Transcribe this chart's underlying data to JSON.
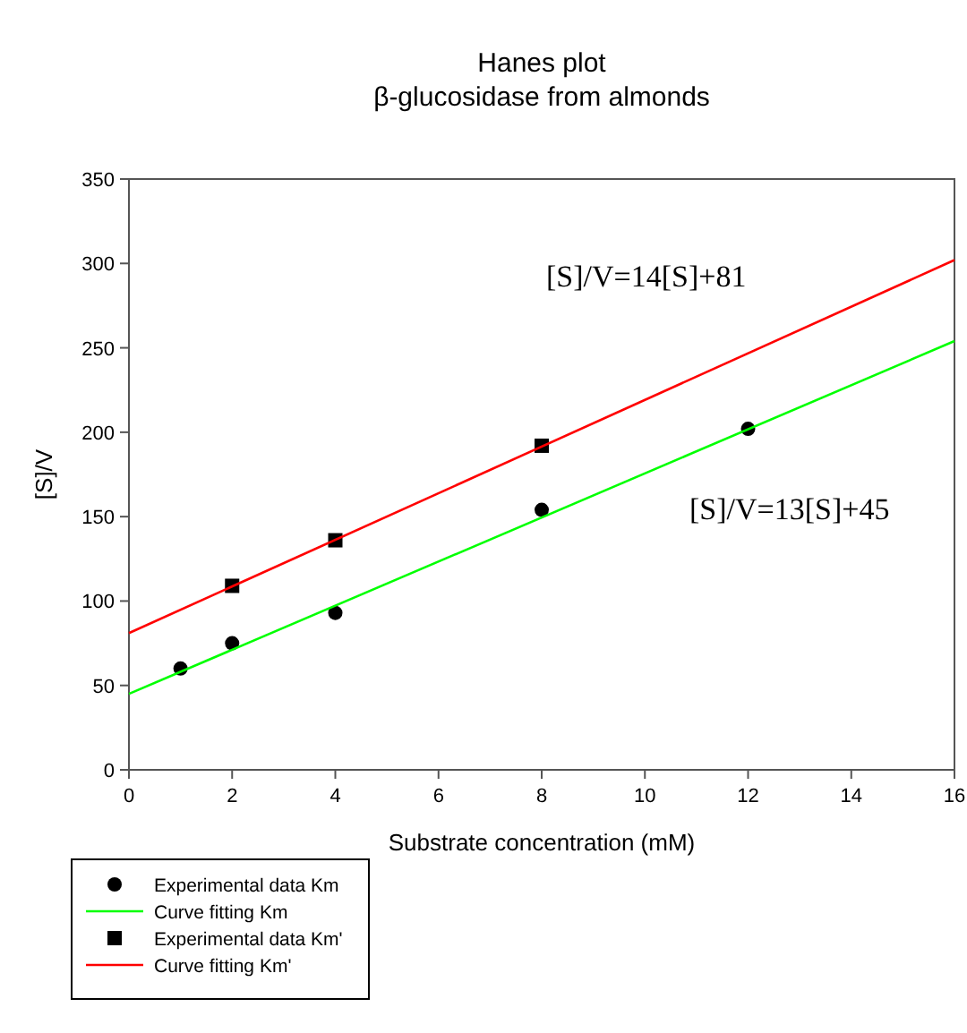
{
  "chart_data": {
    "type": "scatter",
    "title": "Hanes plot",
    "subtitle": "β-glucosidase from almonds",
    "xlabel": "Substrate concentration (mM)",
    "ylabel": "[S]/V",
    "xlim": [
      0,
      16
    ],
    "xticks": [
      0,
      2,
      4,
      6,
      8,
      10,
      12,
      14,
      16
    ],
    "ylim": [
      0,
      350
    ],
    "yticks": [
      0,
      50,
      100,
      150,
      200,
      250,
      300,
      350
    ],
    "grid": false,
    "legend": "bottom left",
    "series": [
      {
        "name": "Experimental data Km",
        "marker": "circle",
        "color": "#000000",
        "x": [
          1,
          2,
          4,
          8,
          12
        ],
        "values": [
          60,
          75,
          93,
          154,
          202
        ]
      },
      {
        "name": "Curve fitting Km",
        "type": "line",
        "marker": "none",
        "color": "#00ff00",
        "x": [
          0,
          16
        ],
        "values": [
          45,
          254
        ]
      },
      {
        "name": "Experimental data Km'",
        "marker": "square",
        "color": "#000000",
        "x": [
          2,
          4,
          8
        ],
        "values": [
          109,
          136,
          192
        ]
      },
      {
        "name": "Curve fitting Km'",
        "type": "line",
        "marker": "none",
        "color": "#ff0000",
        "x": [
          0,
          16
        ],
        "values": [
          81,
          302
        ]
      }
    ],
    "annotations": [
      "[S]/V=14[S]+81",
      "[S]/V=13[S]+45"
    ]
  }
}
